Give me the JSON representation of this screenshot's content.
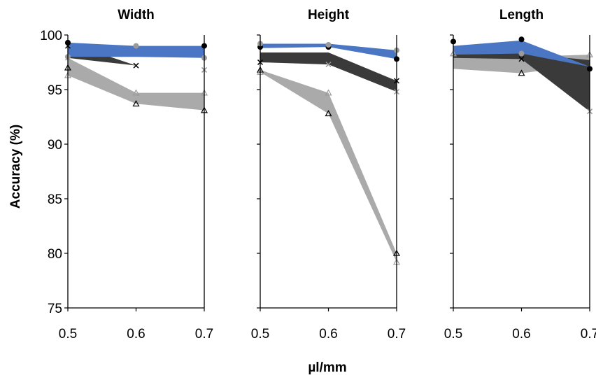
{
  "chart_data": {
    "type": "area",
    "ylabel": "Accuracy (%)",
    "xlabel": "µl/mm",
    "ylim": [
      75,
      100
    ],
    "yticks": [
      "75",
      "80",
      "85",
      "90",
      "95",
      "100"
    ],
    "xticks": [
      "0.5",
      "0.6",
      "0.7"
    ],
    "x": [
      0.5,
      0.6,
      0.7
    ],
    "grid": false,
    "legend": "none",
    "colors": {
      "blue": "#4a76c4",
      "dark": "#3a3a3a",
      "light": "#aaaaaa"
    },
    "panels": [
      {
        "title": "Width",
        "bands": [
          {
            "color": "light",
            "upper": [
              97.9,
              94.7,
              94.7
            ],
            "lower": [
              96.3,
              93.7,
              93.1
            ]
          },
          {
            "color": "dark",
            "upper": [
              99.3,
              97.2,
              96.8
            ],
            "lower": [
              97.9,
              97.2,
              96.8
            ]
          },
          {
            "color": "blue",
            "upper": [
              99.3,
              99.0,
              99.0
            ],
            "lower": [
              98.0,
              98.0,
              97.9
            ]
          }
        ],
        "markers": [
          {
            "shape": "dot-black",
            "values": [
              99.3,
              null,
              99.0
            ]
          },
          {
            "shape": "dot-gray",
            "values": [
              98.0,
              99.0,
              97.9
            ]
          },
          {
            "shape": "x-black",
            "values": [
              99.0,
              97.2,
              null
            ]
          },
          {
            "shape": "x-gray",
            "values": [
              97.9,
              null,
              96.8
            ]
          },
          {
            "shape": "tri-black",
            "values": [
              97.0,
              93.7,
              93.1
            ]
          },
          {
            "shape": "tri-gray",
            "values": [
              96.3,
              94.7,
              94.7
            ]
          }
        ]
      },
      {
        "title": "Height",
        "bands": [
          {
            "color": "light",
            "upper": [
              96.8,
              94.7,
              80.0
            ],
            "lower": [
              96.6,
              92.8,
              79.2
            ]
          },
          {
            "color": "dark",
            "upper": [
              98.4,
              98.4,
              95.8
            ],
            "lower": [
              97.5,
              97.3,
              94.8
            ]
          },
          {
            "color": "blue",
            "upper": [
              99.2,
              99.2,
              98.6
            ],
            "lower": [
              98.8,
              98.9,
              97.8
            ]
          }
        ],
        "markers": [
          {
            "shape": "dot-black",
            "values": [
              98.9,
              98.9,
              97.8
            ]
          },
          {
            "shape": "dot-gray",
            "values": [
              99.2,
              99.1,
              98.6
            ]
          },
          {
            "shape": "x-black",
            "values": [
              97.5,
              null,
              95.8
            ]
          },
          {
            "shape": "x-gray",
            "values": [
              null,
              97.3,
              94.8
            ]
          },
          {
            "shape": "tri-black",
            "values": [
              96.8,
              92.8,
              80.0
            ]
          },
          {
            "shape": "tri-gray",
            "values": [
              96.6,
              94.7,
              79.2
            ]
          }
        ]
      },
      {
        "title": "Length",
        "bands": [
          {
            "color": "light",
            "upper": [
              98.3,
              98.0,
              98.2
            ],
            "lower": [
              96.9,
              96.5,
              97.3
            ]
          },
          {
            "color": "dark",
            "upper": [
              98.8,
              98.3,
              97.7
            ],
            "lower": [
              97.9,
              97.8,
              93.0
            ]
          },
          {
            "color": "blue",
            "upper": [
              99.0,
              99.5,
              97.1
            ],
            "lower": [
              98.2,
              98.3,
              97.1
            ]
          }
        ],
        "markers": [
          {
            "shape": "dot-black",
            "values": [
              99.4,
              99.6,
              96.9
            ]
          },
          {
            "shape": "dot-gray",
            "values": [
              null,
              98.3,
              null
            ]
          },
          {
            "shape": "x-black",
            "values": [
              null,
              97.8,
              null
            ]
          },
          {
            "shape": "x-gray",
            "values": [
              null,
              null,
              93.0
            ]
          },
          {
            "shape": "tri-black",
            "values": [
              null,
              96.5,
              null
            ]
          },
          {
            "shape": "tri-gray",
            "values": [
              98.3,
              null,
              98.2
            ]
          }
        ]
      }
    ]
  }
}
